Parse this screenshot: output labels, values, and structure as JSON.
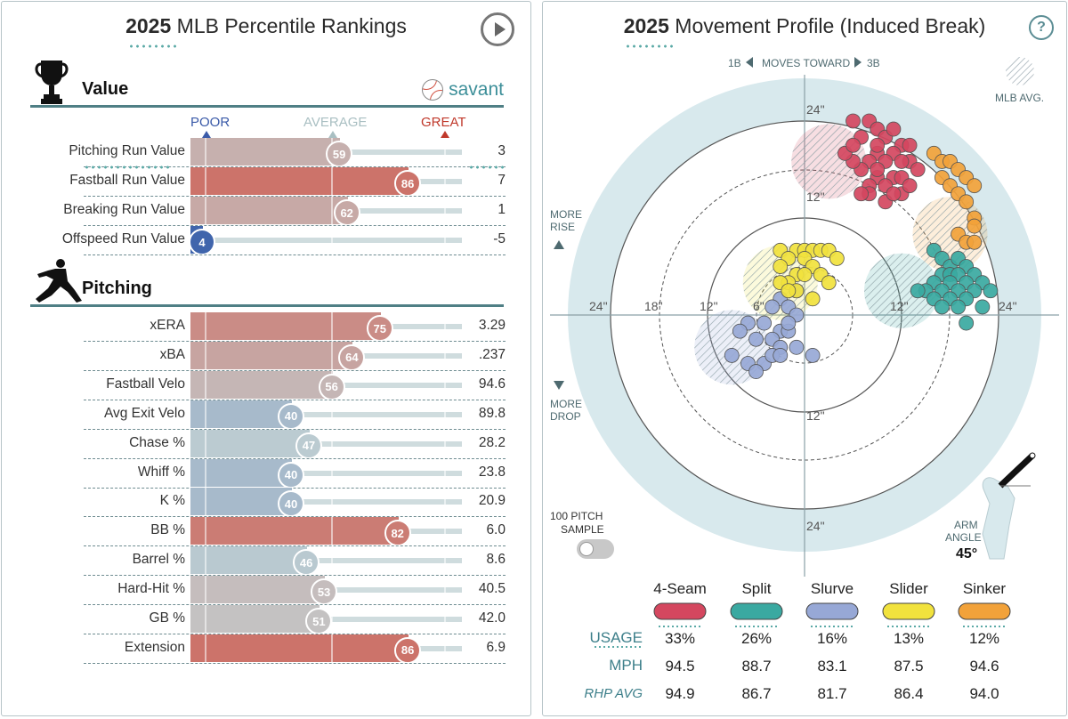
{
  "left": {
    "title_bold": "2025",
    "title_rest": " MLB Percentile Rankings",
    "scale": {
      "poor": "POOR",
      "average": "AVERAGE",
      "great": "GREAT"
    },
    "value_section": {
      "label": "Value",
      "brand": "savant",
      "rows": [
        {
          "name": "Pitching Run Value",
          "pct": 59,
          "val": "3"
        },
        {
          "name": "Fastball Run Value",
          "pct": 86,
          "val": "7"
        },
        {
          "name": "Breaking Run Value",
          "pct": 62,
          "val": "1"
        },
        {
          "name": "Offspeed Run Value",
          "pct": 4,
          "val": "-5"
        }
      ]
    },
    "pitching_section": {
      "label": "Pitching",
      "rows": [
        {
          "name": "xERA",
          "pct": 75,
          "val": "3.29"
        },
        {
          "name": "xBA",
          "pct": 64,
          "val": ".237"
        },
        {
          "name": "Fastball Velo",
          "pct": 56,
          "val": "94.6"
        },
        {
          "name": "Avg Exit Velo",
          "pct": 40,
          "val": "89.8"
        },
        {
          "name": "Chase %",
          "pct": 47,
          "val": "28.2"
        },
        {
          "name": "Whiff %",
          "pct": 40,
          "val": "23.8"
        },
        {
          "name": "K %",
          "pct": 40,
          "val": "20.9"
        },
        {
          "name": "BB %",
          "pct": 82,
          "val": "6.0"
        },
        {
          "name": "Barrel %",
          "pct": 46,
          "val": "8.6"
        },
        {
          "name": "Hard-Hit %",
          "pct": 53,
          "val": "40.5"
        },
        {
          "name": "GB %",
          "pct": 51,
          "val": "42.0"
        },
        {
          "name": "Extension",
          "pct": 86,
          "val": "6.9"
        }
      ]
    }
  },
  "right": {
    "title_bold": "2025",
    "title_rest": " Movement Profile (Induced Break)",
    "help": "?",
    "toward": {
      "left": "1B",
      "mid": "MOVES TOWARD",
      "right": "3B"
    },
    "mlb_avg": "MLB AVG.",
    "more_rise": [
      "MORE",
      "RISE"
    ],
    "more_drop": [
      "MORE",
      "DROP"
    ],
    "sample": [
      "100 PITCH",
      "SAMPLE"
    ],
    "arm_angle_label": [
      "ARM",
      "ANGLE"
    ],
    "arm_angle_value": "45°",
    "ring_labels": {
      "top24": "24\"",
      "top12": "12\"",
      "bottom12": "12\"",
      "bottom24": "24\"",
      "left24": "24\"",
      "left18": "18\"",
      "left12": "12\"",
      "left6": "6\"",
      "right12": "12\"",
      "right24": "24\""
    },
    "table": {
      "row_labels": {
        "usage": "USAGE",
        "mph": "MPH",
        "rhp": "RHP AVG"
      },
      "pitches": [
        {
          "name": "4-Seam",
          "color": "#d4475f",
          "usage": "33%",
          "mph": "94.5",
          "rhp": "94.9"
        },
        {
          "name": "Split",
          "color": "#3aa9a1",
          "usage": "26%",
          "mph": "88.7",
          "rhp": "86.7"
        },
        {
          "name": "Slurve",
          "color": "#97a8d6",
          "usage": "16%",
          "mph": "83.1",
          "rhp": "81.7"
        },
        {
          "name": "Slider",
          "color": "#f1e23d",
          "usage": "13%",
          "mph": "87.5",
          "rhp": "86.4"
        },
        {
          "name": "Sinker",
          "color": "#f2a23a",
          "usage": "12%",
          "mph": "94.6",
          "rhp": "94.0"
        }
      ]
    }
  },
  "chart_data": {
    "type": "scatter",
    "xlim": [
      -30,
      30
    ],
    "ylim": [
      -30,
      30
    ],
    "series": [
      {
        "name": "4-Seam",
        "color": "#d4475f",
        "avg": [
          3,
          19
        ],
        "points": [
          [
            6,
            24
          ],
          [
            8,
            24
          ],
          [
            9,
            23
          ],
          [
            7,
            22
          ],
          [
            10,
            22
          ],
          [
            12,
            21
          ],
          [
            11,
            20
          ],
          [
            9,
            20
          ],
          [
            8,
            19
          ],
          [
            10,
            19
          ],
          [
            13,
            19
          ],
          [
            7,
            18
          ],
          [
            9,
            17
          ],
          [
            11,
            17
          ],
          [
            12,
            17
          ],
          [
            8,
            16
          ],
          [
            10,
            16
          ],
          [
            12,
            15
          ],
          [
            8,
            15
          ],
          [
            14,
            18
          ],
          [
            6,
            19
          ],
          [
            9,
            21
          ],
          [
            11,
            23
          ],
          [
            13,
            21
          ],
          [
            5,
            20
          ],
          [
            7,
            15
          ],
          [
            10,
            14
          ],
          [
            12,
            19
          ],
          [
            9,
            18
          ],
          [
            11,
            15
          ],
          [
            6,
            21
          ],
          [
            13,
            16
          ]
        ]
      },
      {
        "name": "Split",
        "color": "#3aa9a1",
        "avg": [
          12,
          3
        ],
        "points": [
          [
            16,
            8
          ],
          [
            17,
            7
          ],
          [
            18,
            6
          ],
          [
            19,
            7
          ],
          [
            20,
            6
          ],
          [
            17,
            5
          ],
          [
            18,
            5
          ],
          [
            19,
            5
          ],
          [
            21,
            5
          ],
          [
            16,
            4
          ],
          [
            18,
            4
          ],
          [
            20,
            4
          ],
          [
            22,
            4
          ],
          [
            15,
            3
          ],
          [
            17,
            3
          ],
          [
            19,
            3
          ],
          [
            21,
            3
          ],
          [
            23,
            3
          ],
          [
            16,
            2
          ],
          [
            18,
            2
          ],
          [
            20,
            2
          ],
          [
            17,
            1
          ],
          [
            19,
            1
          ],
          [
            20,
            -1
          ],
          [
            22,
            1
          ],
          [
            14,
            3
          ]
        ]
      },
      {
        "name": "Slurve",
        "color": "#97a8d6",
        "avg": [
          -9,
          -4
        ],
        "points": [
          [
            -1,
            3
          ],
          [
            -3,
            2
          ],
          [
            -2,
            1
          ],
          [
            -4,
            1
          ],
          [
            -1,
            0
          ],
          [
            -7,
            -1
          ],
          [
            -5,
            -1
          ],
          [
            -3,
            -2
          ],
          [
            -2,
            -2
          ],
          [
            -6,
            -3
          ],
          [
            -4,
            -3
          ],
          [
            -3,
            -4
          ],
          [
            -1,
            -4
          ],
          [
            -9,
            -5
          ],
          [
            -7,
            -6
          ],
          [
            -5,
            -6
          ],
          [
            -4,
            -5
          ],
          [
            -3,
            -5
          ],
          [
            -6,
            -7
          ],
          [
            1,
            -5
          ],
          [
            -2,
            -1
          ],
          [
            -8,
            -2
          ]
        ]
      },
      {
        "name": "Slider",
        "color": "#f1e23d",
        "avg": [
          -3,
          4
        ],
        "points": [
          [
            -3,
            8
          ],
          [
            -1,
            8
          ],
          [
            0,
            8
          ],
          [
            1,
            8
          ],
          [
            2,
            8
          ],
          [
            3,
            8
          ],
          [
            -2,
            7
          ],
          [
            0,
            7
          ],
          [
            1,
            6
          ],
          [
            2,
            5
          ],
          [
            -3,
            6
          ],
          [
            -1,
            5
          ],
          [
            -2,
            4
          ],
          [
            0,
            5
          ],
          [
            -3,
            4
          ],
          [
            -1,
            3
          ],
          [
            1,
            2
          ],
          [
            -2,
            3
          ],
          [
            4,
            7
          ],
          [
            3,
            4
          ]
        ]
      },
      {
        "name": "Sinker",
        "color": "#f2a23a",
        "avg": [
          18,
          10
        ],
        "points": [
          [
            16,
            20
          ],
          [
            17,
            19
          ],
          [
            18,
            19
          ],
          [
            19,
            18
          ],
          [
            17,
            17
          ],
          [
            20,
            17
          ],
          [
            18,
            16
          ],
          [
            21,
            16
          ],
          [
            19,
            15
          ],
          [
            20,
            14
          ],
          [
            21,
            12
          ],
          [
            21,
            11
          ],
          [
            19,
            10
          ],
          [
            20,
            9
          ],
          [
            21,
            9
          ]
        ]
      }
    ]
  }
}
